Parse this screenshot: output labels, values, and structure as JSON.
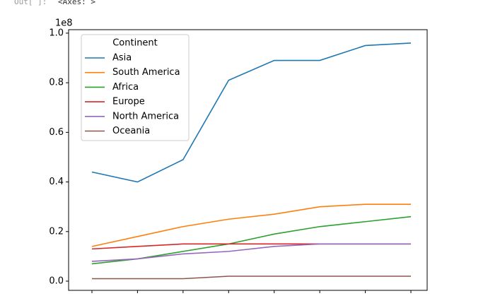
{
  "prompt": "Out[ ]:",
  "output_text": "<Axes: >",
  "chart_data": {
    "type": "line",
    "categories": [
      null,
      null,
      null,
      null,
      null,
      null,
      null,
      null
    ],
    "offset_text": "1e8",
    "legend_title": "Continent",
    "legend": "upper left",
    "series": [
      {
        "name": "Asia",
        "color": "#1f77b4",
        "values": [
          0.44,
          0.4,
          0.49,
          0.81,
          0.89,
          0.89,
          0.95,
          0.96
        ]
      },
      {
        "name": "South America",
        "color": "#ff7f0e",
        "values": [
          0.14,
          0.18,
          0.22,
          0.25,
          0.27,
          0.3,
          0.31,
          0.31
        ]
      },
      {
        "name": "Africa",
        "color": "#2ca02c",
        "values": [
          0.07,
          0.09,
          0.12,
          0.15,
          0.19,
          0.22,
          0.24,
          0.26
        ]
      },
      {
        "name": "Europe",
        "color": "#d62728",
        "values": [
          0.13,
          0.14,
          0.15,
          0.15,
          0.15,
          0.15,
          0.15,
          0.15
        ]
      },
      {
        "name": "North America",
        "color": "#9467bd",
        "values": [
          0.08,
          0.09,
          0.11,
          0.12,
          0.14,
          0.15,
          0.15,
          0.15
        ]
      },
      {
        "name": "Oceania",
        "color": "#8c564b",
        "values": [
          0.01,
          0.01,
          0.01,
          0.02,
          0.02,
          0.02,
          0.02,
          0.02
        ]
      }
    ],
    "ylim": [
      -0.037,
      1.014
    ],
    "yticks": [
      {
        "value": 0,
        "label": "0.0"
      },
      {
        "value": 0.2,
        "label": "0.2"
      },
      {
        "value": 0.4,
        "label": "0.4"
      },
      {
        "value": 0.6,
        "label": "0.6"
      },
      {
        "value": 0.8,
        "label": "0.8"
      },
      {
        "value": 1.0,
        "label": "1.0"
      }
    ]
  }
}
